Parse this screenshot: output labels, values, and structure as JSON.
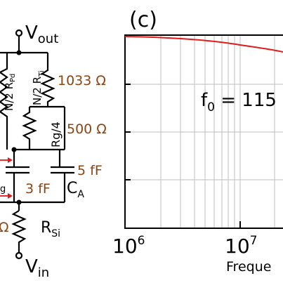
{
  "circuit": {
    "vout": {
      "main": "V",
      "sub": "out"
    },
    "vin": {
      "main": "V",
      "sub": "in"
    },
    "r_pd_partial": {
      "main": "N/2 R",
      "sub": "Pd"
    },
    "r_ti": {
      "main": "N/2 R",
      "sub": "Ti"
    },
    "r_ti_value": "1033 Ω",
    "rg_label": "Rg/4",
    "rg_value": "500 Ω",
    "left_cap_partial": "g",
    "left_cap_value": "3 fF",
    "ca_value": "5 fF",
    "ca_label": {
      "main": "C",
      "sub": "A"
    },
    "r_si": {
      "main": "R",
      "sub": "Si"
    },
    "left_omega_partial": "Ω",
    "left_n2_partial": "N/2"
  },
  "plot": {
    "panel_label": "(c)",
    "annotation": {
      "main": "f",
      "sub": "0",
      "rest": " = 115"
    },
    "x_ticks": [
      {
        "base": "10",
        "exp": "6"
      },
      {
        "base": "10",
        "exp": "7"
      }
    ],
    "xlabel_partial": "Freque",
    "line_color": "#e31a1c"
  }
}
